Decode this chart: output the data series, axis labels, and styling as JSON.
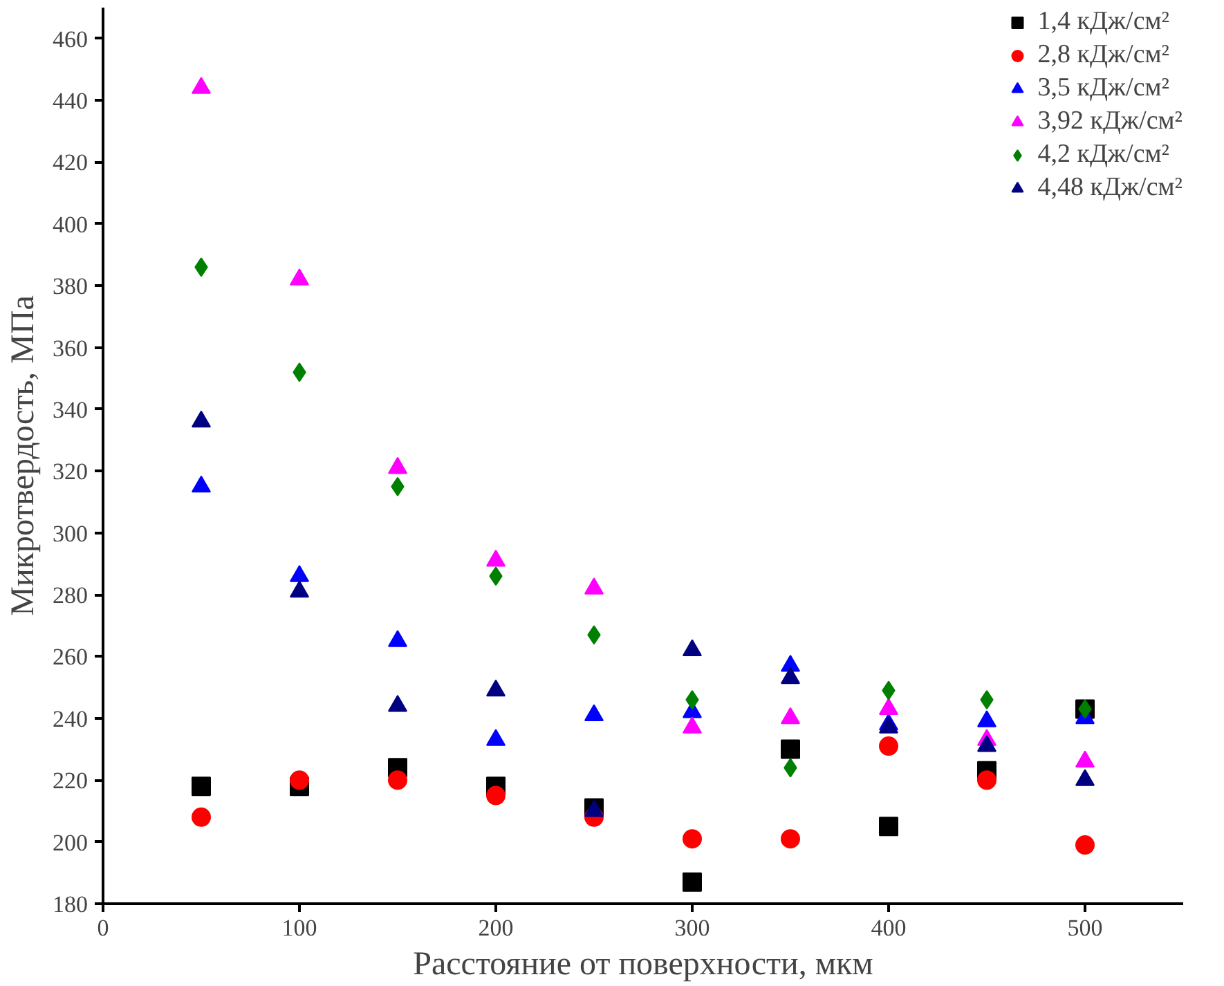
{
  "chart_data": {
    "type": "scatter",
    "xlabel": "Расстояние от поверхности, мкм",
    "ylabel": "Микротвердость, МПа",
    "x": [
      50,
      100,
      150,
      200,
      250,
      300,
      350,
      400,
      450,
      500
    ],
    "xlim": [
      0,
      550
    ],
    "xticks": [
      0,
      100,
      200,
      300,
      400,
      500
    ],
    "ylim": [
      180,
      470
    ],
    "yticks": [
      180,
      200,
      220,
      240,
      260,
      280,
      300,
      320,
      340,
      360,
      380,
      400,
      420,
      440,
      460
    ],
    "grid": false,
    "legend": "top right",
    "series": [
      {
        "name": "1,4 кДж/см²",
        "color": "#000000",
        "marker": "square",
        "values": [
          218,
          218,
          224,
          218,
          211,
          187,
          230,
          205,
          223,
          243
        ]
      },
      {
        "name": "2,8 кДж/см²",
        "color": "#ff0000",
        "marker": "circle",
        "values": [
          208,
          220,
          220,
          215,
          208,
          201,
          201,
          231,
          220,
          199
        ]
      },
      {
        "name": "3,5 кДж/см²",
        "color": "#0000ff",
        "marker": "triangle",
        "values": [
          315,
          286,
          265,
          233,
          241,
          242,
          257,
          238,
          239,
          240
        ]
      },
      {
        "name": "3,92 кДж/см²",
        "color": "#ff00ff",
        "marker": "triangle",
        "values": [
          444,
          382,
          321,
          291,
          282,
          237,
          240,
          243,
          233,
          226
        ]
      },
      {
        "name": "4,2 кДж/см²",
        "color": "#008000",
        "marker": "diamond",
        "values": [
          386,
          352,
          315,
          286,
          267,
          246,
          224,
          249,
          246,
          243
        ]
      },
      {
        "name": "4,48 кДж/см²",
        "color": "#000080",
        "marker": "triangle",
        "values": [
          336,
          281,
          244,
          249,
          210,
          262,
          253,
          237,
          231,
          220
        ]
      }
    ]
  }
}
